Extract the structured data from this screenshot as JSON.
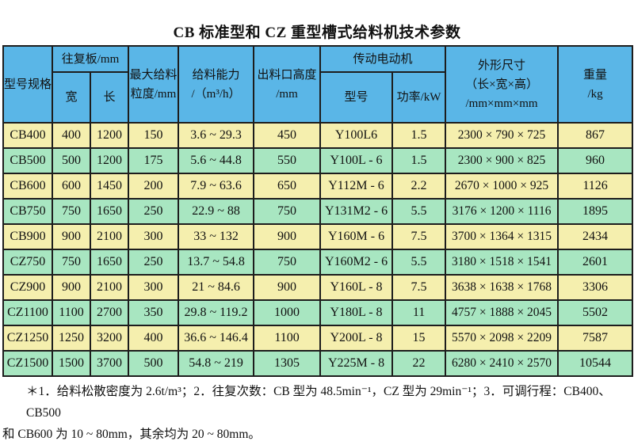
{
  "title": "CB 标准型和 CZ 重型槽式给料机技术参数",
  "colors": {
    "page_bg": "#ffffff",
    "header_bg": "#5ab6e7",
    "row_yellow": "#f5efae",
    "row_green": "#a8e6c1",
    "border": "#1d1d1d"
  },
  "table": {
    "header": {
      "model_spec": "型号规格",
      "reciprocating_plate": "往复板/mm",
      "width": "宽",
      "length": "长",
      "max_feed_size": "最大给料\n粒度/mm",
      "feed_capacity": "给料能力\n/（m³/h）",
      "outlet_height": "出料口高度\n/mm",
      "drive_motor": "传动电动机",
      "motor_model": "型号",
      "motor_power": "功率/kW",
      "dimensions": "外形尺寸\n（长×宽×高）\n/mm×mm×mm",
      "weight": "重量\n/kg"
    },
    "column_keys": [
      "model",
      "plate-width",
      "plate-length",
      "max-feed-size",
      "feed-capacity",
      "outlet-height",
      "motor-model",
      "motor-power",
      "dimensions",
      "weight"
    ],
    "rows": [
      [
        "CB400",
        "400",
        "1200",
        "150",
        "3.6 ~ 29.3",
        "450",
        "Y100L6",
        "1.5",
        "2300 × 790 × 725",
        "867"
      ],
      [
        "CB500",
        "500",
        "1200",
        "175",
        "5.6 ~ 44.8",
        "550",
        "Y100L - 6",
        "1.5",
        "2300 × 900 × 825",
        "960"
      ],
      [
        "CB600",
        "600",
        "1450",
        "200",
        "7.9 ~ 63.6",
        "650",
        "Y112M - 6",
        "2.2",
        "2670 × 1000 × 925",
        "1126"
      ],
      [
        "CB750",
        "750",
        "1650",
        "250",
        "22.9 ~ 88",
        "750",
        "Y131M2 - 6",
        "5.5",
        "3176 × 1200 × 1116",
        "1895"
      ],
      [
        "CB900",
        "900",
        "2100",
        "300",
        "33 ~ 132",
        "900",
        "Y160M - 6",
        "7.5",
        "3700 × 1364 × 1315",
        "2434"
      ],
      [
        "CZ750",
        "750",
        "1650",
        "250",
        "13.7 ~ 54.8",
        "750",
        "Y160M2 - 6",
        "5.5",
        "3180 × 1518 × 1541",
        "2601"
      ],
      [
        "CZ900",
        "900",
        "2100",
        "300",
        "21 ~ 84.6",
        "900",
        "Y160L - 8",
        "7.5",
        "3638 × 1638 × 1768",
        "3306"
      ],
      [
        "CZ1100",
        "1100",
        "2700",
        "350",
        "29.8 ~ 119.2",
        "1000",
        "Y180L - 8",
        "11",
        "4757 × 1888 × 2045",
        "5502"
      ],
      [
        "CZ1250",
        "1250",
        "3200",
        "400",
        "36.6 ~ 146.4",
        "1100",
        "Y200L - 8",
        "15",
        "5570 × 2098 × 2209",
        "7587"
      ],
      [
        "CZ1500",
        "1500",
        "3700",
        "500",
        "54.8 ~ 219",
        "1305",
        "Y225M - 8",
        "22",
        "6280 × 2410 × 2570",
        "10544"
      ]
    ]
  },
  "footnote": {
    "line1": "＊1．给料松散密度为 2.6t/m³；2．往复次数：CB 型为 48.5min⁻¹，CZ 型为 29min⁻¹；3．可调行程：CB400、CB500",
    "line2": "和 CB600 为 10 ~ 80mm，其余均为 20 ~ 80mm。"
  }
}
